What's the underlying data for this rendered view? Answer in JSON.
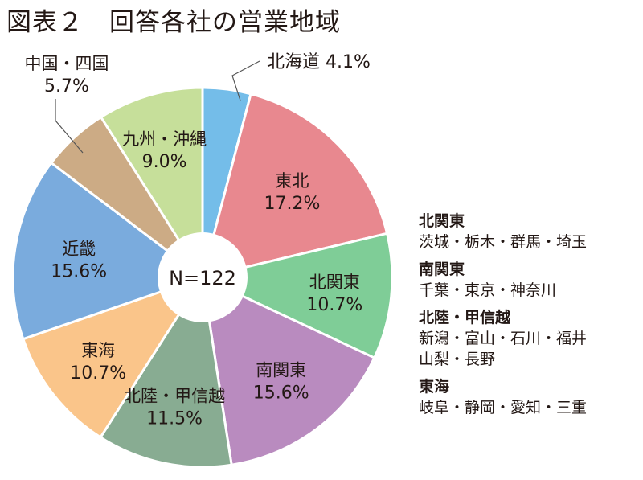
{
  "title": "図表２　回答各社の営業地域",
  "colors": {
    "text": "#231815",
    "slice_border": "#ffffff",
    "leader": "#555555"
  },
  "chart_data": {
    "type": "pie",
    "title": "図表２　回答各社の営業地域",
    "center_label": "N=122",
    "start": "12 o'clock",
    "direction": "clockwise",
    "slices": [
      {
        "label": "北海道",
        "value": 4.1,
        "value_text": "4.1%",
        "color": "#74bde9"
      },
      {
        "label": "東北",
        "value": 17.2,
        "value_text": "17.2%",
        "color": "#e8888f"
      },
      {
        "label": "北関東",
        "value": 10.7,
        "value_text": "10.7%",
        "color": "#7fcd97"
      },
      {
        "label": "南関東",
        "value": 15.6,
        "value_text": "15.6%",
        "color": "#b98bbf"
      },
      {
        "label": "北陸・甲信越",
        "value": 11.5,
        "value_text": "11.5%",
        "color": "#88ac92"
      },
      {
        "label": "東海",
        "value": 10.7,
        "value_text": "10.7%",
        "color": "#fac58a"
      },
      {
        "label": "近畿",
        "value": 15.6,
        "value_text": "15.6%",
        "color": "#7aabdd"
      },
      {
        "label": "中国・四国",
        "value": 5.7,
        "value_text": "5.7%",
        "color": "#ccab85"
      },
      {
        "label": "九州・沖縄",
        "value": 9.0,
        "value_text": "9.0%",
        "color": "#c6df9a"
      }
    ]
  },
  "region_notes": [
    {
      "heading": "北関東",
      "lines": [
        "茨城・栃木・群馬・埼玉"
      ]
    },
    {
      "heading": "南関東",
      "lines": [
        "千葉・東京・神奈川"
      ]
    },
    {
      "heading": "北陸・甲信越",
      "lines": [
        "新潟・富山・石川・福井",
        "山梨・長野"
      ]
    },
    {
      "heading": "東海",
      "lines": [
        "岐阜・静岡・愛知・三重"
      ]
    }
  ]
}
